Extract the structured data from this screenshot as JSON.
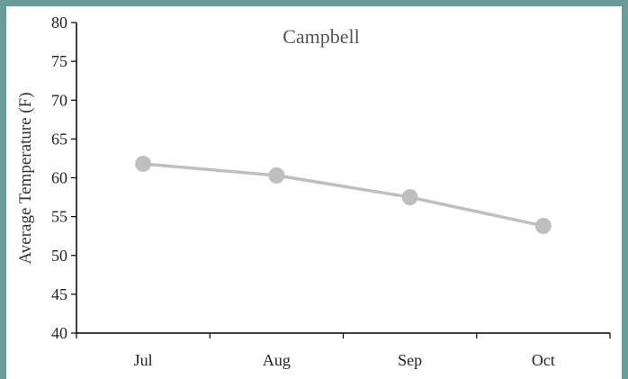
{
  "chart_data": {
    "type": "line",
    "title": "Campbell",
    "xlabel": "",
    "ylabel": "Average Temperature (F)",
    "categories": [
      "Jul",
      "Aug",
      "Sep",
      "Oct"
    ],
    "series": [
      {
        "values": [
          61.8,
          60.3,
          57.5,
          53.8
        ],
        "color": "#bfbfbf"
      }
    ],
    "ylim": [
      40,
      80
    ],
    "yticks": [
      40,
      45,
      50,
      55,
      60,
      65,
      70,
      75,
      80
    ],
    "grid": false,
    "legend": "none"
  },
  "colors": {
    "frame": "#6a9c99",
    "axis": "#000000",
    "line": "#bfbfbf",
    "marker": "#bfbfbf"
  }
}
